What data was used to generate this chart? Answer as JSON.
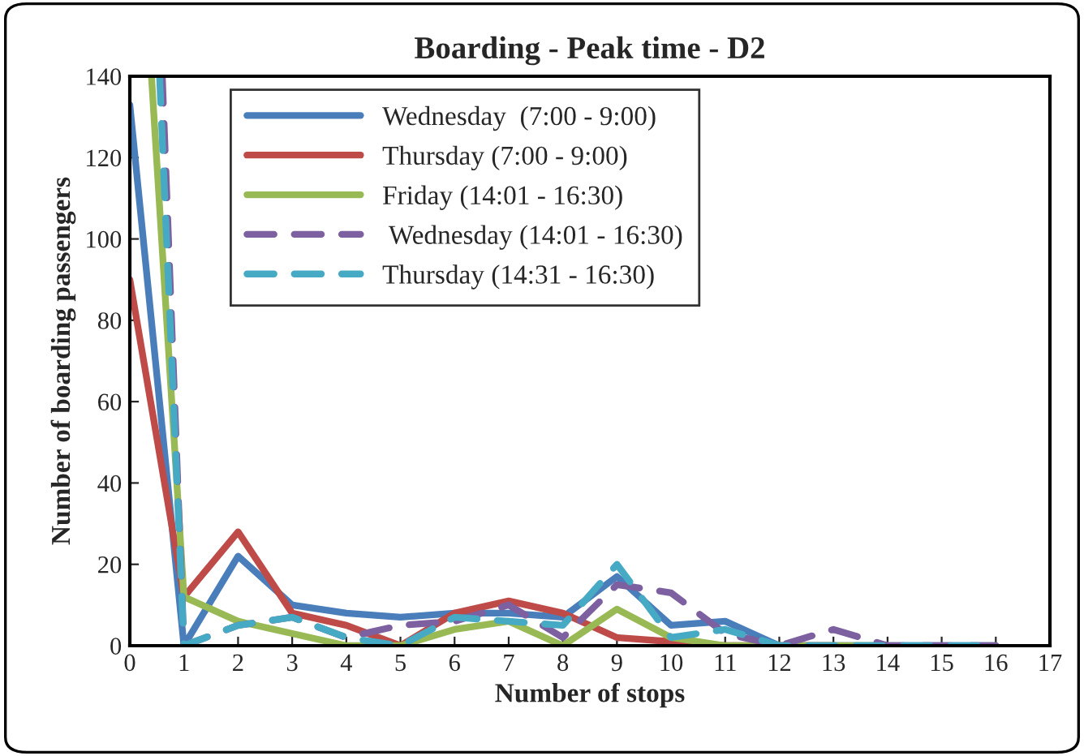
{
  "chart_data": {
    "type": "line",
    "title": "Boarding - Peak time - D2",
    "xlabel": "Number of stops",
    "ylabel": "Number of boarding passengers",
    "xlim": [
      0,
      17
    ],
    "xticks": [
      0,
      1,
      2,
      3,
      4,
      5,
      6,
      7,
      8,
      9,
      10,
      11,
      12,
      13,
      14,
      15,
      16,
      17
    ],
    "ylim": [
      0,
      140
    ],
    "yticks": [
      0,
      20,
      40,
      60,
      80,
      100,
      120,
      140
    ],
    "grid": false,
    "legend": "top",
    "marker": "none",
    "series": [
      {
        "name": "Wednesday  (7:00 - 9:00)",
        "color": "#4a7ebb",
        "line_style": "solid",
        "x": [
          0,
          1,
          2,
          3,
          4,
          5,
          6,
          7,
          8,
          9,
          10,
          11,
          12,
          13,
          14,
          15,
          16
        ],
        "values": [
          133,
          0,
          22,
          10,
          8,
          7,
          8,
          8,
          7,
          17,
          5,
          6,
          0,
          0,
          0,
          0,
          0
        ]
      },
      {
        "name": "Thursday (7:00 - 9:00)",
        "color": "#be4b48",
        "line_style": "solid",
        "x": [
          0,
          1,
          2,
          3,
          4,
          5,
          6,
          7,
          8,
          9,
          10,
          11,
          12,
          13
        ],
        "values": [
          90,
          12,
          28,
          8,
          5,
          0,
          8,
          11,
          8,
          2,
          1,
          0,
          0,
          0
        ]
      },
      {
        "name": "Friday (14:01 - 16:30)",
        "color": "#98b954",
        "line_style": "solid",
        "x": [
          0.4,
          1,
          2,
          3,
          4,
          5,
          6,
          7,
          8,
          9,
          10,
          11,
          12,
          13,
          14
        ],
        "values": [
          140,
          12,
          6,
          3,
          0,
          0,
          4,
          6,
          0,
          9,
          2,
          0,
          0,
          0,
          0
        ]
      },
      {
        "name": " Wednesday (14:01 - 16:30)",
        "color": "#7d60a0",
        "line_style": "dashed",
        "x": [
          0.6,
          1,
          2,
          3,
          4,
          5,
          6,
          7,
          8,
          9,
          10,
          11,
          12,
          13,
          14,
          15,
          16
        ],
        "values": [
          140,
          0,
          5,
          7,
          2,
          5,
          6,
          10,
          2,
          15,
          13,
          3,
          0,
          4,
          0,
          0,
          0
        ]
      },
      {
        "name": "Thursday (14:31 - 16:30)",
        "color": "#46aac5",
        "line_style": "dashed",
        "x": [
          0.55,
          1,
          2,
          3,
          4,
          5,
          6,
          7,
          8,
          9,
          10,
          11,
          12,
          13,
          14,
          15,
          16
        ],
        "values": [
          140,
          0,
          5,
          7,
          2,
          0,
          7,
          6,
          5,
          20,
          2,
          4,
          0,
          0,
          0,
          0,
          0
        ]
      }
    ]
  }
}
